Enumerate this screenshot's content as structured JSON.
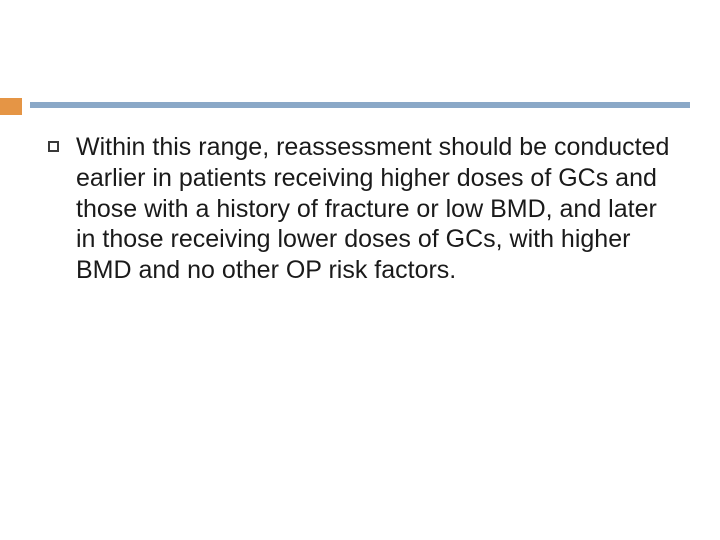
{
  "theme": {
    "accent_color": "#e59545",
    "divider_color": "#8aa8c7",
    "background_color": "#ffffff",
    "bullet_border_color": "#3a3a3a",
    "text_color": "#1a1a1a",
    "body_fontsize": 25,
    "body_lineheight": 1.23
  },
  "content": {
    "bullets": [
      "Within this range, reassessment should be conducted earlier in patients receiving higher doses of GCs and those with a history of fracture or low BMD, and later in those receiving lower doses of GCs, with higher BMD and no other OP risk factors."
    ]
  }
}
